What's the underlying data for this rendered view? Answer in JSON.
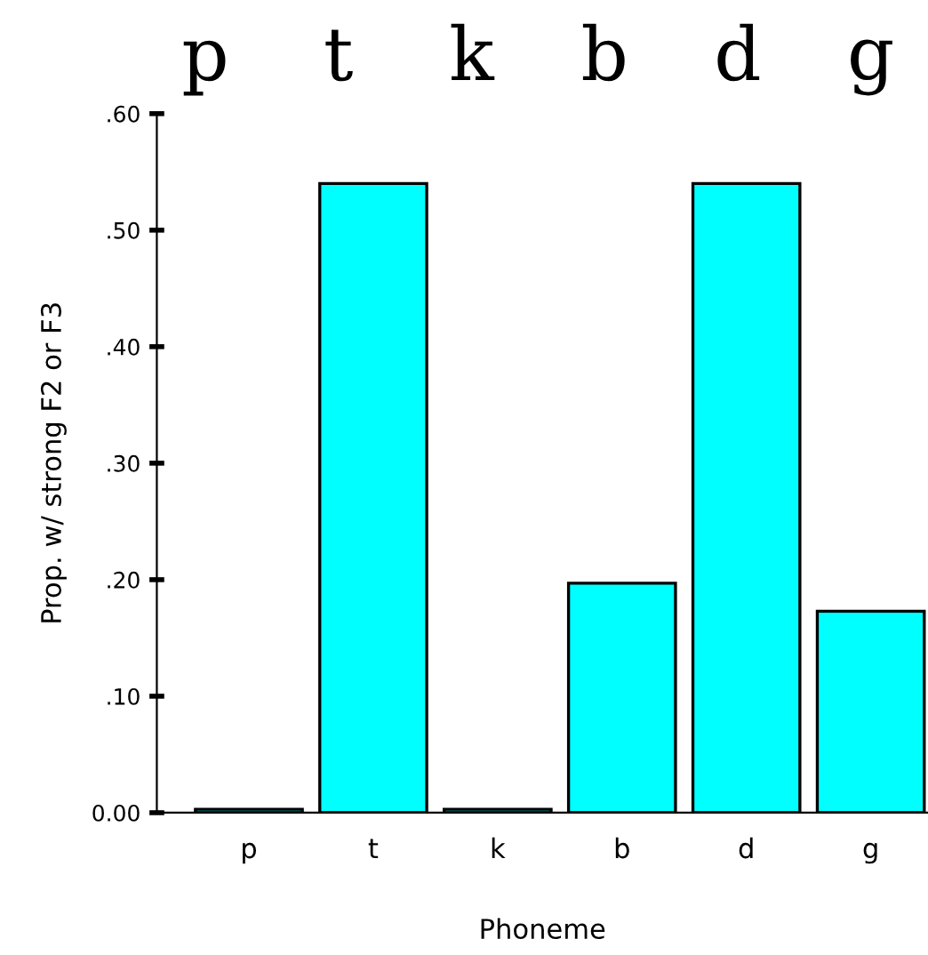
{
  "chart_data": {
    "type": "bar",
    "xlabel": "Phoneme",
    "ylabel": "Prop. w/ strong F2 or F3",
    "categories": [
      "p",
      "t",
      "k",
      "b",
      "d",
      "g"
    ],
    "values": [
      0.003,
      0.54,
      0.003,
      0.197,
      0.54,
      0.173
    ],
    "color": "#00ffff",
    "ylim": [
      0,
      0.6
    ],
    "yticks": [
      {
        "value": 0,
        "label": "0.00"
      },
      {
        "value": 0.1,
        "label": ".10"
      },
      {
        "value": 0.2,
        "label": ".20"
      },
      {
        "value": 0.3,
        "label": ".30"
      },
      {
        "value": 0.4,
        "label": ".40"
      },
      {
        "value": 0.5,
        "label": ".50"
      },
      {
        "value": 0.6,
        "label": ".60"
      }
    ],
    "annotations": [
      "p",
      "t",
      "k",
      "b",
      "d",
      "g"
    ],
    "grid": false,
    "legend": false
  }
}
